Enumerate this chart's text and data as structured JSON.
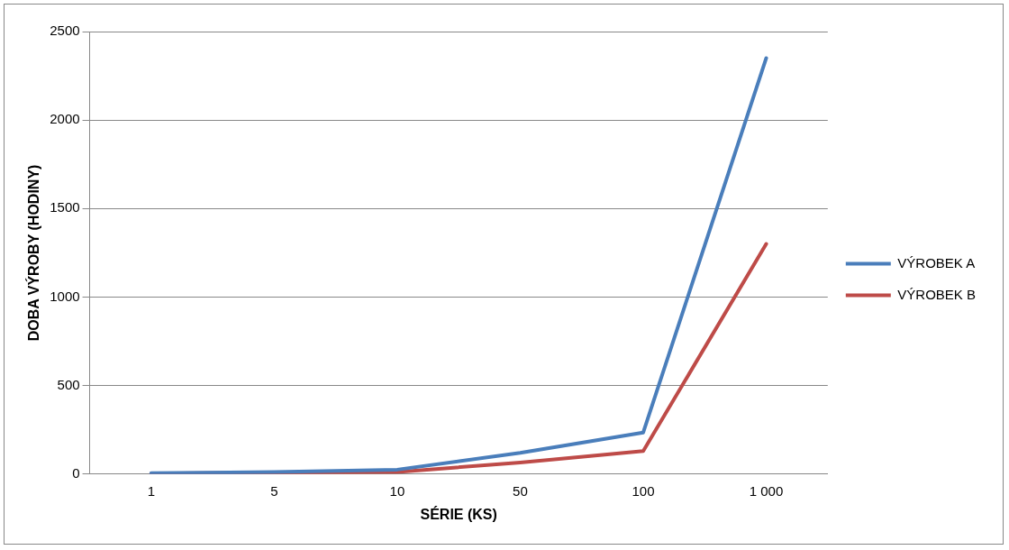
{
  "chart_data": {
    "type": "line",
    "xlabel": "SÉRIE (KS)",
    "ylabel": "DOBA VÝROBY (HODINY)",
    "categories": [
      "1",
      "5",
      "10",
      "50",
      "100",
      "1 000"
    ],
    "series": [
      {
        "name": "VÝROBEK A",
        "color": "#4a7ebb",
        "values": [
          5,
          12,
          25,
          120,
          235,
          2350
        ]
      },
      {
        "name": "VÝROBEK B",
        "color": "#be4b48",
        "values": [
          3,
          8,
          12,
          65,
          130,
          1300
        ]
      }
    ],
    "ylim": [
      0,
      2500
    ],
    "yticks": [
      0,
      500,
      1000,
      1500,
      2000,
      2500
    ],
    "grid": "y",
    "legend": "right",
    "marker": "none",
    "line_style": "solid"
  }
}
